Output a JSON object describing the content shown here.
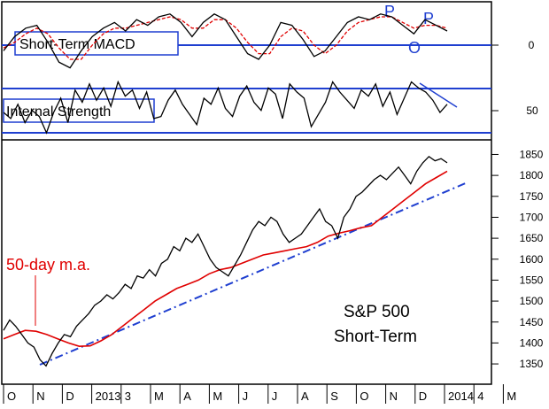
{
  "chart_data": [
    {
      "type": "line",
      "panel": "top",
      "box_label": "Short-Term MACD",
      "y_ticks": [
        "0"
      ],
      "annotations": [
        "P",
        "P",
        "O"
      ],
      "annotation_color": "#1f3fd0",
      "series": [
        {
          "color": "#000000",
          "values": [
            -0.2,
            0.3,
            0.6,
            0.7,
            0.1,
            -0.6,
            -0.8,
            -0.2,
            0.3,
            0.6,
            0.8,
            0.5,
            0.9,
            0.7,
            1.0,
            1.1,
            0.8,
            0.3,
            0.8,
            1.1,
            0.9,
            0.3,
            -0.3,
            -0.5,
            0.0,
            0.8,
            0.7,
            0.2,
            -0.4,
            -0.2,
            0.3,
            0.8,
            1.0,
            0.9,
            1.1,
            1.0,
            0.7,
            0.4,
            0.9,
            0.7,
            0.5
          ]
        },
        {
          "color": "#e00000",
          "values": [
            -0.1,
            0.1,
            0.4,
            0.6,
            0.4,
            -0.1,
            -0.5,
            -0.5,
            0.0,
            0.4,
            0.6,
            0.6,
            0.7,
            0.8,
            0.9,
            1.0,
            0.9,
            0.6,
            0.6,
            0.9,
            0.9,
            0.6,
            0.1,
            -0.3,
            -0.3,
            0.3,
            0.6,
            0.5,
            0.0,
            -0.3,
            0.0,
            0.5,
            0.8,
            0.9,
            1.0,
            1.0,
            0.8,
            0.6,
            0.7,
            0.7,
            0.6
          ]
        }
      ]
    },
    {
      "type": "line",
      "panel": "middle",
      "box_label": "Internal Strength",
      "y_ticks": [
        "50"
      ],
      "series": [
        {
          "color": "#000000",
          "values": [
            50,
            44,
            58,
            40,
            52,
            46,
            30,
            50,
            64,
            40,
            72,
            60,
            78,
            62,
            74,
            56,
            80,
            66,
            72,
            54,
            70,
            44,
            46,
            62,
            72,
            58,
            48,
            38,
            64,
            58,
            74,
            54,
            46,
            66,
            76,
            60,
            52,
            74,
            68,
            44,
            78,
            70,
            64,
            36,
            48,
            60,
            80,
            70,
            62,
            54,
            72,
            66,
            78,
            56,
            70,
            48,
            64,
            80,
            74,
            70,
            62,
            50,
            58
          ]
        }
      ]
    },
    {
      "type": "line",
      "panel": "bottom",
      "title": "S&P 500",
      "subtitle": "Short-Term",
      "ma_label": "50-day m.a.",
      "ma_color": "#e00000",
      "trend_color": "#1f3fd0",
      "y_ticks": [
        1350,
        1400,
        1450,
        1500,
        1550,
        1600,
        1650,
        1700,
        1750,
        1800,
        1850
      ],
      "ylim": [
        1310,
        1870
      ],
      "x_labels": [
        "O",
        "N",
        "D",
        "2013",
        "3",
        "M",
        "A",
        "M",
        "J",
        "J",
        "A",
        "S",
        "O",
        "N",
        "D",
        "2014",
        "4",
        "M"
      ],
      "series": [
        {
          "name": "S&P 500",
          "color": "#000000",
          "values": [
            1430,
            1455,
            1440,
            1420,
            1400,
            1390,
            1360,
            1345,
            1375,
            1400,
            1420,
            1415,
            1440,
            1455,
            1470,
            1490,
            1500,
            1515,
            1505,
            1520,
            1540,
            1530,
            1560,
            1555,
            1575,
            1560,
            1590,
            1600,
            1630,
            1620,
            1650,
            1640,
            1660,
            1630,
            1600,
            1580,
            1570,
            1560,
            1585,
            1610,
            1640,
            1670,
            1690,
            1680,
            1700,
            1690,
            1660,
            1640,
            1650,
            1660,
            1680,
            1700,
            1720,
            1690,
            1680,
            1650,
            1700,
            1720,
            1750,
            1760,
            1775,
            1790,
            1800,
            1790,
            1805,
            1820,
            1800,
            1780,
            1810,
            1830,
            1845,
            1835,
            1840,
            1830
          ]
        },
        {
          "name": "50-day m.a.",
          "color": "#e00000",
          "values": [
            1410,
            1420,
            1430,
            1428,
            1420,
            1410,
            1400,
            1392,
            1393,
            1405,
            1420,
            1440,
            1460,
            1480,
            1500,
            1515,
            1530,
            1540,
            1550,
            1565,
            1575,
            1580,
            1590,
            1600,
            1610,
            1615,
            1620,
            1625,
            1630,
            1640,
            1655,
            1662,
            1668,
            1675,
            1680,
            1700,
            1720,
            1740,
            1760,
            1780,
            1795,
            1810
          ]
        }
      ]
    }
  ]
}
